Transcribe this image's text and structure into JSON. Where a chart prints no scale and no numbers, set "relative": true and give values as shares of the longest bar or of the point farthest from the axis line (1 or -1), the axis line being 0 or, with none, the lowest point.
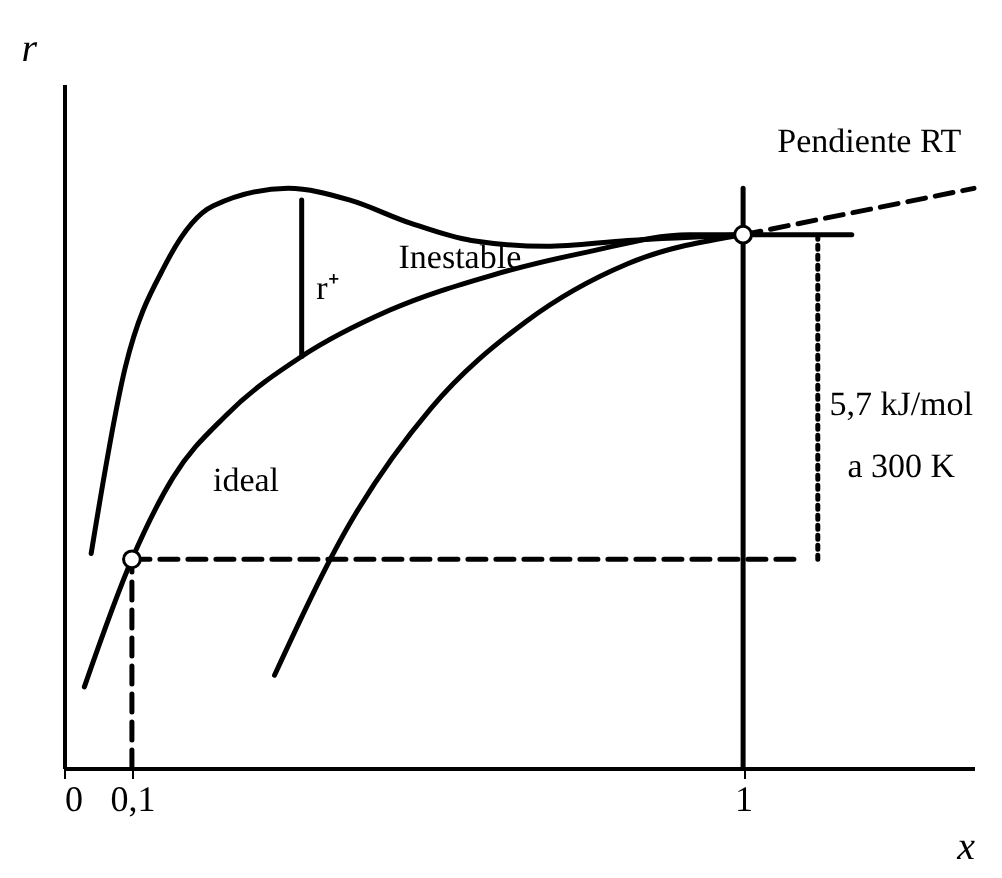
{
  "chart_data": {
    "type": "line",
    "relative": true,
    "xlabel": "x",
    "ylabel": "r",
    "xlim": [
      0,
      1.34
    ],
    "xticks": [
      0,
      {
        "value": 0.1,
        "label": "0,1"
      },
      1
    ],
    "tick_labels": "x",
    "series": [
      {
        "color": "#000000",
        "line_style": "solid",
        "x": [
          0.03,
          0.1,
          0.16,
          0.24,
          0.35,
          0.48,
          0.63,
          0.77,
          0.92,
          1.0
        ],
        "values": [
          0.14,
          0.36,
          0.5,
          0.61,
          0.71,
          0.79,
          0.85,
          0.89,
          0.92,
          0.92
        ]
      },
      {
        "color": "#000000",
        "line_style": "solid",
        "x": [
          0.04,
          0.09,
          0.15,
          0.22,
          0.33,
          0.42,
          0.51,
          0.6,
          0.71,
          0.83,
          1.0
        ],
        "values": [
          0.37,
          0.69,
          0.87,
          0.97,
          1.0,
          0.98,
          0.94,
          0.91,
          0.9,
          0.91,
          0.92
        ]
      },
      {
        "color": "#000000",
        "line_style": "solid",
        "x": [
          0.31,
          0.42,
          0.54,
          0.68,
          0.83,
          1.0
        ],
        "values": [
          0.16,
          0.42,
          0.62,
          0.77,
          0.87,
          0.92
        ]
      },
      {
        "color": "#000000",
        "line_style": "dashed",
        "x": [
          1.0,
          1.34
        ],
        "values": [
          0.92,
          1.0
        ]
      },
      {
        "color": "#000000",
        "line_style": "solid",
        "x": [
          1.0,
          1.0
        ],
        "values": [
          0.0,
          1.0
        ]
      },
      {
        "color": "#000000",
        "line_style": "solid",
        "x": [
          1.0,
          1.16
        ],
        "values": [
          0.92,
          0.92
        ]
      },
      {
        "color": "#000000",
        "line_style": "dashed",
        "x": [
          0.1,
          1.08
        ],
        "values": [
          0.36,
          0.36
        ]
      },
      {
        "color": "#000000",
        "line_style": "dashed",
        "x": [
          0.1,
          0.1
        ],
        "values": [
          0.0,
          0.36
        ]
      },
      {
        "color": "#000000",
        "line_style": "dotted",
        "x": [
          1.11,
          1.11
        ],
        "values": [
          0.36,
          0.92
        ]
      },
      {
        "color": "#000000",
        "line_style": "solid",
        "x": [
          0.35,
          0.35
        ],
        "values": [
          0.71,
          0.98
        ]
      },
      {
        "type": "scatter",
        "color": "#000000",
        "marker": "circle",
        "x": [
          0.1,
          1.0
        ],
        "values": [
          0.36,
          0.92
        ]
      }
    ],
    "annotations": [
      "ideal",
      "Inestable",
      "r⁺",
      "Pendiente RT",
      "5,7 kJ/mol",
      "a 300 K"
    ]
  }
}
